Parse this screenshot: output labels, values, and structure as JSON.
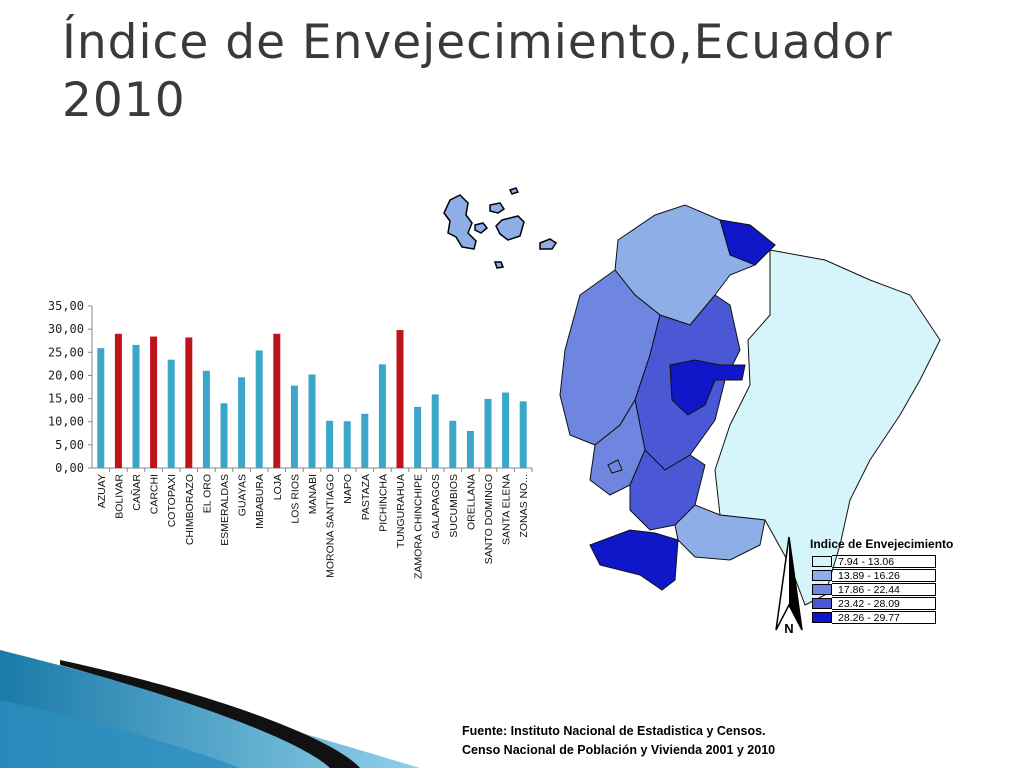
{
  "slide": {
    "title": "Índice de Envejecimiento,Ecuador 2010",
    "source_line1": "Fuente: Instituto Nacional de Estadistica y Censos.",
    "source_line2": "Censo Nacional de Población y Vivienda 2001 y 2010"
  },
  "chart_data": {
    "type": "bar",
    "title": "",
    "xlabel": "",
    "ylabel": "",
    "ylim": [
      0,
      35
    ],
    "yticks": [
      "0,00",
      "5,00",
      "10,00",
      "15,00",
      "20,00",
      "25,00",
      "30,00",
      "35,00"
    ],
    "grid": false,
    "categories": [
      "AZUAY",
      "BOLIVAR",
      "CAÑAR",
      "CARCHI",
      "COTOPAXI",
      "CHIMBORAZO",
      "EL ORO",
      "ESMERALDAS",
      "GUAYAS",
      "IMBABURA",
      "LOJA",
      "LOS RIOS",
      "MANABI",
      "MORONA SANTIAGO",
      "NAPO",
      "PASTAZA",
      "PICHINCHA",
      "TUNGURAHUA",
      "ZAMORA CHINCHIPE",
      "GALAPAGOS",
      "SUCUMBIOS",
      "ORELLANA",
      "SANTO DOMINGO",
      "SANTA ELENA",
      "ZONAS NO..."
    ],
    "values": [
      25.9,
      29.0,
      26.6,
      28.4,
      23.4,
      28.2,
      21.0,
      14.0,
      19.6,
      25.4,
      29.0,
      17.8,
      20.2,
      10.2,
      10.1,
      11.7,
      22.4,
      29.8,
      13.2,
      15.9,
      10.2,
      8.0,
      14.9,
      16.3,
      14.4
    ],
    "highlighted": [
      "BOLIVAR",
      "CARCHI",
      "CHIMBORAZO",
      "LOJA",
      "TUNGURAHUA"
    ],
    "colors": {
      "default": "#3aa6c8",
      "highlight": "#c0141c"
    }
  },
  "map": {
    "legend_title": "Indice de Envejecimiento",
    "legend": [
      {
        "label": "7.94 - 13.06",
        "color": "#d6f5fa"
      },
      {
        "label": "13.89 - 16.26",
        "color": "#8eaee8"
      },
      {
        "label": "17.86 - 22.44",
        "color": "#6f86e0"
      },
      {
        "label": "23.42 - 28.09",
        "color": "#4a58d6"
      },
      {
        "label": "28.26 - 29.77",
        "color": "#0f17c8"
      }
    ],
    "north_label": "N"
  }
}
